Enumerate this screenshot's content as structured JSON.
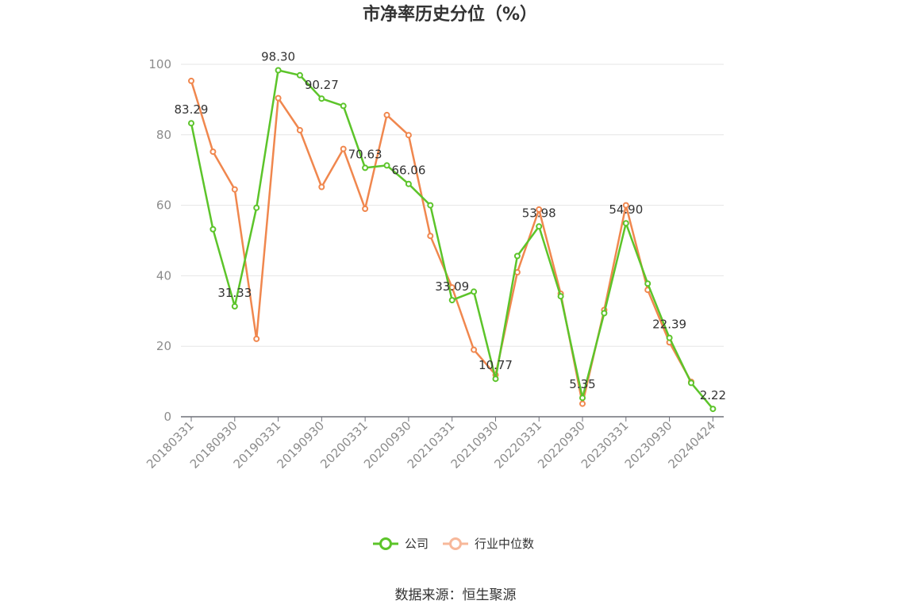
{
  "chart_data": {
    "type": "line",
    "title": "市净率历史分位（%）",
    "ylim": [
      0,
      100
    ],
    "yticks": [
      0,
      20,
      40,
      60,
      80,
      100
    ],
    "x_tick_labels": [
      "20180331",
      "20180930",
      "20190331",
      "20190930",
      "20200331",
      "20200930",
      "20210331",
      "20210930",
      "20220331",
      "20220930",
      "20230331",
      "20230930",
      "20240424"
    ],
    "grid": true,
    "legend_position": "bottom",
    "series": [
      {
        "name": "公司",
        "color": "#5cc42a",
        "values": [
          83.29,
          53.2,
          31.33,
          59.3,
          98.3,
          96.9,
          90.27,
          88.2,
          70.63,
          71.3,
          66.06,
          60.0,
          33.09,
          35.5,
          10.77,
          45.6,
          53.98,
          34.2,
          5.35,
          29.4,
          54.9,
          37.8,
          22.39,
          9.6,
          2.22
        ],
        "labels": {
          "0": "83.29",
          "2": "31.33",
          "4": "98.30",
          "6": "90.27",
          "8": "70.63",
          "10": "66.06",
          "12": "33.09",
          "14": "10.77",
          "16": "53.98",
          "18": "5.35",
          "20": "54.90",
          "22": "22.39",
          "24": "2.22"
        }
      },
      {
        "name": "行业中位数",
        "color": "#f0874e",
        "values": [
          95.3,
          75.2,
          64.5,
          22.1,
          90.4,
          81.3,
          65.2,
          76.0,
          59.0,
          85.6,
          79.9,
          51.3,
          36.7,
          19.0,
          11.9,
          41.0,
          58.8,
          34.9,
          3.7,
          30.3,
          60.0,
          36.0,
          21.1,
          9.9,
          null
        ]
      }
    ]
  },
  "legend": {
    "company": "公司",
    "industry": "行业中位数",
    "industry_icon_color": "#f7b89a"
  },
  "source": "数据来源：恒生聚源"
}
